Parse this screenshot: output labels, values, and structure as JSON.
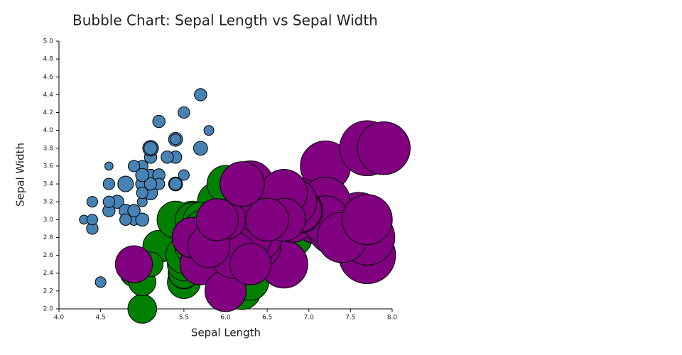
{
  "chart_data": {
    "type": "bubble",
    "title": "Bubble Chart: Sepal Length vs Sepal Width",
    "x_label": "Sepal Length",
    "y_label": "Sepal Width",
    "xlim": [
      4.0,
      8.0
    ],
    "xticks": [
      {
        "value": 4.0,
        "label": "4.0"
      },
      {
        "value": 4.5,
        "label": "4.5"
      },
      {
        "value": 5.0,
        "label": "5.0"
      },
      {
        "value": 5.5,
        "label": "5.5"
      },
      {
        "value": 6.0,
        "label": "6.0"
      },
      {
        "value": 6.5,
        "label": "6.5"
      },
      {
        "value": 7.0,
        "label": "7.0"
      },
      {
        "value": 7.5,
        "label": "7.5"
      },
      {
        "value": 8.0,
        "label": "8.0"
      }
    ],
    "ylim": [
      2.0,
      5.0
    ],
    "yticks": [
      {
        "value": 2.0,
        "label": "2.0"
      },
      {
        "value": 2.2,
        "label": "2.2"
      },
      {
        "value": 2.4,
        "label": "2.4"
      },
      {
        "value": 2.6,
        "label": "2.6"
      },
      {
        "value": 2.8,
        "label": "2.8"
      },
      {
        "value": 3.0,
        "label": "3.0"
      },
      {
        "value": 3.2,
        "label": "3.2"
      },
      {
        "value": 3.4,
        "label": "3.4"
      },
      {
        "value": 3.6,
        "label": "3.6"
      },
      {
        "value": 3.8,
        "label": "3.8"
      },
      {
        "value": 4.0,
        "label": "4.0"
      },
      {
        "value": 4.2,
        "label": "4.2"
      },
      {
        "value": 4.4,
        "label": "4.4"
      },
      {
        "value": 4.6,
        "label": "4.6"
      },
      {
        "value": 4.8,
        "label": "4.8"
      },
      {
        "value": 5.0,
        "label": "5.0"
      }
    ],
    "grid": false,
    "series": [
      {
        "color": "#4682b4",
        "x": [
          5.1,
          4.9,
          4.7,
          4.6,
          5.0,
          5.4,
          4.6,
          5.0,
          4.4,
          4.9,
          5.4,
          4.8,
          4.8,
          4.3,
          5.8,
          5.7,
          5.4,
          5.1,
          5.7,
          5.1,
          5.4,
          5.1,
          4.6,
          5.1,
          4.8,
          5.0,
          5.0,
          5.2,
          5.2,
          4.7,
          4.8,
          5.4,
          5.2,
          5.5,
          4.9,
          5.0,
          5.5,
          4.9,
          4.4,
          5.1,
          5.0,
          4.5,
          4.4,
          5.0,
          5.1,
          4.8,
          5.1,
          4.6,
          5.3,
          5.0
        ],
        "values": [
          3.5,
          3.0,
          3.2,
          3.1,
          3.6,
          3.9,
          3.4,
          3.4,
          2.9,
          3.1,
          3.7,
          3.4,
          3.0,
          3.0,
          4.0,
          4.4,
          3.9,
          3.5,
          3.8,
          3.8,
          3.4,
          3.7,
          3.6,
          3.3,
          3.4,
          3.0,
          3.4,
          3.5,
          3.4,
          3.2,
          3.1,
          3.4,
          4.1,
          4.2,
          3.1,
          3.2,
          3.5,
          3.6,
          3.0,
          3.4,
          3.5,
          2.3,
          3.2,
          3.5,
          3.8,
          3.0,
          3.8,
          3.2,
          3.7,
          3.3
        ],
        "sizes": [
          1.4,
          1.4,
          1.3,
          1.5,
          1.4,
          1.7,
          1.4,
          1.5,
          1.4,
          1.5,
          1.5,
          1.6,
          1.4,
          1.1,
          1.2,
          1.5,
          1.3,
          1.4,
          1.7,
          1.5,
          1.7,
          1.5,
          1.0,
          1.7,
          1.9,
          1.6,
          1.6,
          1.5,
          1.4,
          1.6,
          1.6,
          1.5,
          1.5,
          1.4,
          1.5,
          1.2,
          1.3,
          1.4,
          1.3,
          1.5,
          1.3,
          1.3,
          1.3,
          1.6,
          1.9,
          1.4,
          1.6,
          1.4,
          1.5,
          1.4
        ]
      },
      {
        "color": "#008000",
        "x": [
          7.0,
          6.4,
          6.9,
          5.5,
          6.5,
          5.7,
          6.3,
          4.9,
          6.6,
          5.2,
          5.0,
          5.9,
          6.0,
          6.1,
          5.6,
          6.7,
          5.6,
          5.8,
          6.2,
          5.6,
          5.9,
          6.1,
          6.3,
          6.1,
          6.4,
          6.6,
          6.8,
          6.7,
          6.0,
          5.7,
          5.5,
          5.5,
          5.8,
          6.0,
          5.4,
          6.0,
          6.7,
          6.3,
          5.6,
          5.5,
          5.5,
          6.1,
          5.8,
          5.0,
          5.6,
          5.7,
          5.7,
          6.2,
          5.1,
          5.7
        ],
        "values": [
          3.2,
          3.2,
          3.1,
          2.3,
          2.8,
          2.8,
          3.3,
          2.4,
          2.9,
          2.7,
          2.0,
          3.0,
          2.2,
          2.9,
          2.9,
          3.1,
          3.0,
          2.7,
          2.2,
          2.5,
          3.2,
          2.8,
          2.5,
          2.8,
          2.9,
          3.0,
          2.8,
          3.0,
          2.9,
          2.6,
          2.4,
          2.4,
          2.7,
          2.7,
          3.0,
          3.4,
          3.1,
          2.3,
          3.0,
          2.5,
          2.6,
          3.0,
          2.6,
          2.3,
          2.7,
          3.0,
          2.9,
          2.9,
          2.5,
          2.8
        ],
        "sizes": [
          4.7,
          4.5,
          4.9,
          4.0,
          4.6,
          4.5,
          4.7,
          3.3,
          4.6,
          3.9,
          3.5,
          4.2,
          4.0,
          4.7,
          3.6,
          4.4,
          4.5,
          4.1,
          4.5,
          3.9,
          4.8,
          4.0,
          4.9,
          4.7,
          4.3,
          4.4,
          4.8,
          5.0,
          4.5,
          3.5,
          3.8,
          3.7,
          3.9,
          5.1,
          4.5,
          4.5,
          4.7,
          4.4,
          4.1,
          4.0,
          4.4,
          4.6,
          4.0,
          3.3,
          4.2,
          4.2,
          4.2,
          4.3,
          3.0,
          4.1
        ]
      },
      {
        "color": "#800080",
        "x": [
          6.3,
          5.8,
          7.1,
          6.3,
          6.5,
          7.6,
          4.9,
          7.3,
          6.7,
          7.2,
          6.5,
          6.4,
          6.8,
          5.7,
          5.8,
          6.4,
          6.5,
          7.7,
          7.7,
          6.0,
          6.9,
          5.6,
          7.7,
          6.3,
          6.7,
          7.2,
          6.2,
          6.1,
          6.4,
          7.2,
          7.4,
          7.9,
          6.4,
          6.3,
          6.1,
          7.7,
          6.3,
          6.4,
          6.0,
          6.9,
          6.7,
          6.9,
          5.8,
          6.8,
          6.7,
          6.7,
          6.3,
          6.5,
          6.2,
          5.9
        ],
        "values": [
          3.3,
          2.7,
          3.0,
          2.9,
          3.0,
          3.0,
          2.5,
          2.9,
          2.5,
          3.6,
          3.2,
          2.7,
          3.0,
          2.5,
          2.8,
          3.2,
          3.0,
          3.8,
          2.6,
          2.2,
          3.2,
          2.8,
          2.8,
          2.7,
          3.3,
          3.2,
          2.8,
          3.0,
          2.8,
          3.0,
          2.8,
          3.8,
          2.8,
          2.8,
          2.6,
          3.0,
          3.4,
          3.1,
          3.0,
          3.1,
          3.1,
          3.1,
          2.7,
          3.2,
          3.3,
          3.0,
          2.5,
          3.0,
          3.4,
          3.0
        ],
        "sizes": [
          6.0,
          5.1,
          5.9,
          5.6,
          5.8,
          6.6,
          4.5,
          6.3,
          5.8,
          6.1,
          5.1,
          5.3,
          5.5,
          5.0,
          5.1,
          5.3,
          5.5,
          6.7,
          6.9,
          5.0,
          5.7,
          4.9,
          6.7,
          4.9,
          5.7,
          6.0,
          4.8,
          4.9,
          5.6,
          5.8,
          6.1,
          6.4,
          5.6,
          5.1,
          5.6,
          6.1,
          5.6,
          5.5,
          4.8,
          5.4,
          5.6,
          5.1,
          5.1,
          5.9,
          5.7,
          5.2,
          5.0,
          5.2,
          5.4,
          5.1
        ]
      }
    ]
  }
}
